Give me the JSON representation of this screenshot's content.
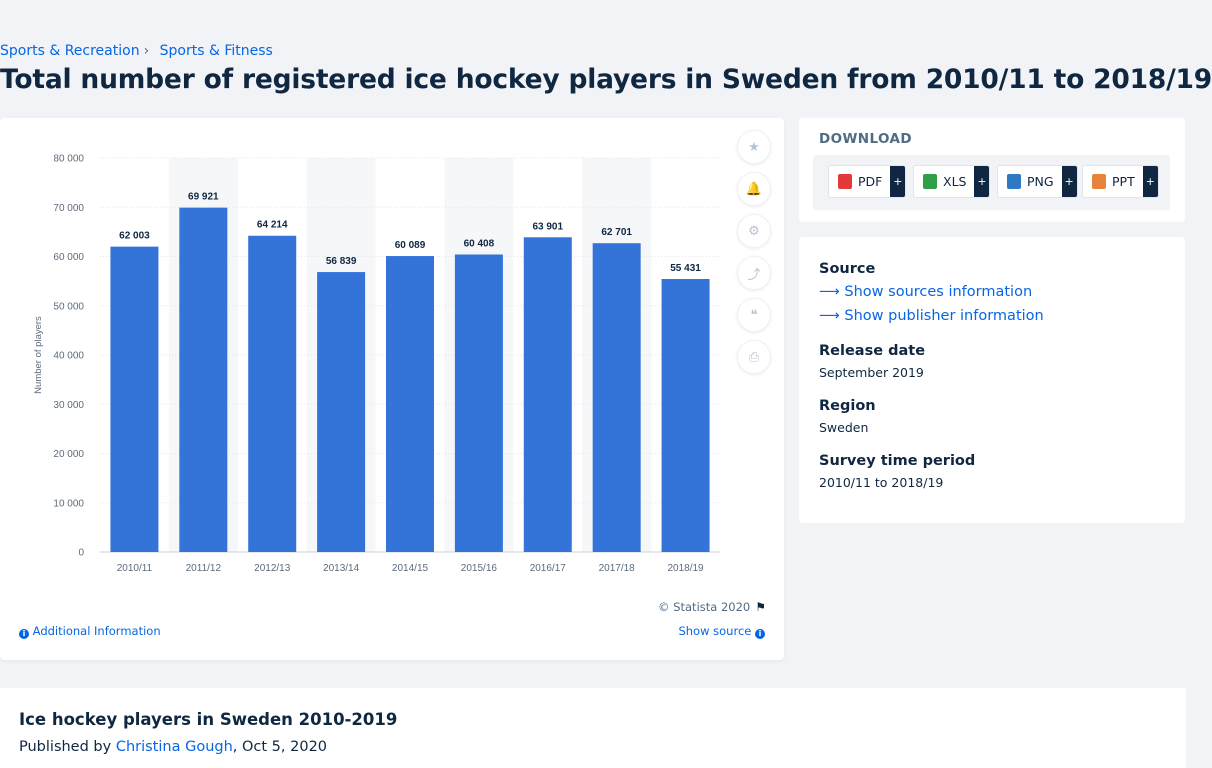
{
  "breadcrumb": {
    "item1": "Sports & Recreation",
    "item2": "Sports & Fitness",
    "separator": "›"
  },
  "page_title": "Total number of registered ice hockey players in Sweden from 2010/11 to 2018/19",
  "chart_data": {
    "type": "bar",
    "categories": [
      "2010/11",
      "2011/12",
      "2012/13",
      "2013/14",
      "2014/15",
      "2015/16",
      "2016/17",
      "2017/18",
      "2018/19"
    ],
    "values": [
      62003,
      69921,
      64214,
      56839,
      60089,
      60408,
      63901,
      62701,
      55431
    ],
    "value_labels": [
      "62 003",
      "69 921",
      "64 214",
      "56 839",
      "60 089",
      "60 408",
      "63 901",
      "62 701",
      "55 431"
    ],
    "ylabel": "Number of players",
    "ylim": [
      0,
      80000
    ],
    "yticks": [
      0,
      10000,
      20000,
      30000,
      40000,
      50000,
      60000,
      70000,
      80000
    ],
    "ytick_labels": [
      "0",
      "10 000",
      "20 000",
      "30 000",
      "40 000",
      "50 000",
      "60 000",
      "70 000",
      "80 000"
    ],
    "bar_color": "#3474d9",
    "grid": true
  },
  "chart_footer": {
    "copyright": "© Statista 2020",
    "additional_info": "Additional Information",
    "show_source": "Show source",
    "info_glyph": "i",
    "flag_glyph": "⚑"
  },
  "tools": [
    {
      "name": "favorite-star-icon",
      "glyph": "★"
    },
    {
      "name": "notification-bell-icon",
      "glyph": "🔔"
    },
    {
      "name": "settings-gear-icon",
      "glyph": "⚙"
    },
    {
      "name": "share-icon",
      "glyph": "⤴"
    },
    {
      "name": "citation-quote-icon",
      "glyph": "❝"
    },
    {
      "name": "print-icon",
      "glyph": "⎙"
    }
  ],
  "download": {
    "title": "DOWNLOAD",
    "plus": "+",
    "formats": [
      {
        "label": "PDF",
        "color": "#e23a3a"
      },
      {
        "label": "XLS",
        "color": "#2f9e44"
      },
      {
        "label": "PNG",
        "color": "#2f78c4"
      },
      {
        "label": "PPT",
        "color": "#e8833a"
      }
    ]
  },
  "meta": {
    "source_label": "Source",
    "show_sources": "Show sources information",
    "show_publisher": "Show publisher information",
    "release_label": "Release date",
    "release_value": "September 2019",
    "region_label": "Region",
    "region_value": "Sweden",
    "period_label": "Survey time period",
    "period_value": "2010/11 to 2018/19",
    "arrow": "⟶"
  },
  "bottom": {
    "title": "Ice hockey players in Sweden 2010-2019",
    "published_prefix": "Published by",
    "author": "Christina Gough",
    "date": ", Oct 5, 2020"
  }
}
